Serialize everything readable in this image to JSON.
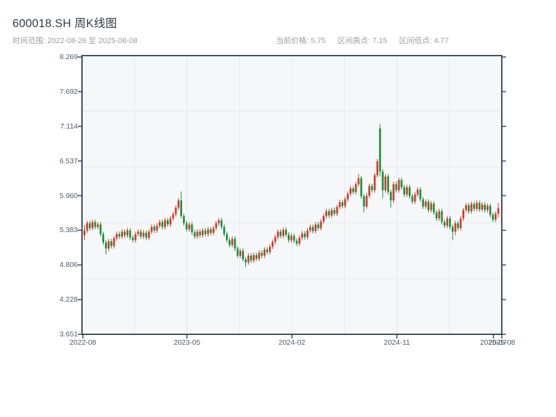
{
  "header": {
    "title": "600018.SH 周K线图",
    "subtitle": "时间范围: 2022-08-26 至 2025-08-08",
    "stats": [
      {
        "label": "当前价格:",
        "value": "5.75"
      },
      {
        "label": "区间高点:",
        "value": "7.15"
      },
      {
        "label": "区间低点:",
        "value": "4.77"
      }
    ]
  },
  "chart_data": {
    "type": "candlestick",
    "symbol": "600018.SH",
    "period": "weekly",
    "date_start": "2022-08-26",
    "date_end": "2025-08-08",
    "current_price": 5.75,
    "range_high": 7.15,
    "range_low": 4.77,
    "ylim": [
      3.651,
      8.269
    ],
    "y_tick_labels": [
      "8.269",
      "7.692",
      "7.114",
      "6.537",
      "5.960",
      "5.383",
      "4.806",
      "4.228",
      "3.651"
    ],
    "y_tick_values": [
      8.269,
      7.692,
      7.114,
      6.537,
      5.96,
      5.383,
      4.806,
      4.228,
      3.651
    ],
    "x_ticks": [
      {
        "label": "2022-08",
        "pos": 0.002
      },
      {
        "label": "2023-05",
        "pos": 0.25
      },
      {
        "label": "2024-02",
        "pos": 0.5
      },
      {
        "label": "2024-11",
        "pos": 0.75
      },
      {
        "label": "2025-07",
        "pos": 0.98
      },
      {
        "label": "2025-08",
        "pos": 1.0
      }
    ],
    "grid": {
      "h_divisions": 5,
      "v_divisions": 8,
      "visible": true
    },
    "legend": "none",
    "colors": {
      "up": "#d1372c",
      "down": "#169139",
      "spine": "#2b3c4e",
      "grid": "#e8eaed",
      "plot_bg": "#f6f7f9",
      "tick_label": "#4d5b69",
      "title": "#2f3b47",
      "subtitle": "#97a0a8"
    },
    "candles_format": "[open, high, low, close] per week",
    "candles": [
      [
        5.3,
        5.47,
        5.22,
        5.38
      ],
      [
        5.38,
        5.54,
        5.34,
        5.5
      ],
      [
        5.5,
        5.54,
        5.38,
        5.42
      ],
      [
        5.42,
        5.56,
        5.38,
        5.52
      ],
      [
        5.52,
        5.56,
        5.4,
        5.44
      ],
      [
        5.44,
        5.52,
        5.4,
        5.48
      ],
      [
        5.48,
        5.52,
        5.28,
        5.32
      ],
      [
        5.32,
        5.36,
        5.14,
        5.18
      ],
      [
        5.18,
        5.22,
        4.98,
        5.08
      ],
      [
        5.08,
        5.24,
        5.04,
        5.2
      ],
      [
        5.2,
        5.24,
        5.08,
        5.12
      ],
      [
        5.12,
        5.29,
        5.08,
        5.25
      ],
      [
        5.25,
        5.36,
        5.21,
        5.32
      ],
      [
        5.32,
        5.36,
        5.24,
        5.28
      ],
      [
        5.28,
        5.4,
        5.24,
        5.36
      ],
      [
        5.36,
        5.4,
        5.26,
        5.3
      ],
      [
        5.3,
        5.42,
        5.26,
        5.38
      ],
      [
        5.38,
        5.42,
        5.22,
        5.26
      ],
      [
        5.26,
        5.3,
        5.18,
        5.22
      ],
      [
        5.22,
        5.36,
        5.18,
        5.32
      ],
      [
        5.32,
        5.4,
        5.28,
        5.36
      ],
      [
        5.36,
        5.4,
        5.24,
        5.28
      ],
      [
        5.28,
        5.38,
        5.24,
        5.34
      ],
      [
        5.34,
        5.38,
        5.22,
        5.26
      ],
      [
        5.26,
        5.4,
        5.22,
        5.36
      ],
      [
        5.36,
        5.48,
        5.32,
        5.44
      ],
      [
        5.44,
        5.48,
        5.34,
        5.38
      ],
      [
        5.38,
        5.5,
        5.34,
        5.46
      ],
      [
        5.46,
        5.56,
        5.42,
        5.52
      ],
      [
        5.52,
        5.56,
        5.4,
        5.44
      ],
      [
        5.44,
        5.59,
        5.4,
        5.55
      ],
      [
        5.55,
        5.59,
        5.44,
        5.48
      ],
      [
        5.48,
        5.62,
        5.44,
        5.58
      ],
      [
        5.58,
        5.69,
        5.54,
        5.65
      ],
      [
        5.65,
        5.8,
        5.61,
        5.76
      ],
      [
        5.76,
        5.92,
        5.72,
        5.88
      ],
      [
        5.88,
        6.03,
        5.58,
        5.62
      ],
      [
        5.62,
        5.66,
        5.46,
        5.5
      ],
      [
        5.5,
        5.54,
        5.36,
        5.4
      ],
      [
        5.4,
        5.52,
        5.36,
        5.48
      ],
      [
        5.48,
        5.52,
        5.31,
        5.35
      ],
      [
        5.35,
        5.39,
        5.24,
        5.28
      ],
      [
        5.28,
        5.4,
        5.24,
        5.36
      ],
      [
        5.36,
        5.4,
        5.26,
        5.3
      ],
      [
        5.3,
        5.42,
        5.26,
        5.38
      ],
      [
        5.38,
        5.42,
        5.28,
        5.32
      ],
      [
        5.32,
        5.44,
        5.28,
        5.4
      ],
      [
        5.4,
        5.44,
        5.3,
        5.34
      ],
      [
        5.34,
        5.46,
        5.3,
        5.42
      ],
      [
        5.42,
        5.54,
        5.38,
        5.5
      ],
      [
        5.5,
        5.59,
        5.46,
        5.55
      ],
      [
        5.55,
        5.59,
        5.4,
        5.44
      ],
      [
        5.44,
        5.48,
        5.28,
        5.32
      ],
      [
        5.32,
        5.36,
        5.18,
        5.22
      ],
      [
        5.22,
        5.26,
        5.1,
        5.14
      ],
      [
        5.14,
        5.28,
        5.1,
        5.24
      ],
      [
        5.24,
        5.28,
        5.04,
        5.08
      ],
      [
        5.08,
        5.12,
        4.92,
        4.96
      ],
      [
        4.96,
        5.08,
        4.92,
        5.04
      ],
      [
        5.04,
        5.08,
        4.86,
        4.9
      ],
      [
        4.9,
        4.94,
        4.77,
        4.85
      ],
      [
        4.85,
        5.0,
        4.81,
        4.96
      ],
      [
        4.96,
        5.0,
        4.84,
        4.88
      ],
      [
        4.88,
        5.01,
        4.84,
        4.97
      ],
      [
        4.97,
        5.01,
        4.87,
        4.91
      ],
      [
        4.91,
        5.05,
        4.87,
        5.01
      ],
      [
        5.01,
        5.05,
        4.92,
        4.96
      ],
      [
        4.96,
        5.1,
        4.92,
        5.06
      ],
      [
        5.06,
        5.1,
        4.98,
        5.02
      ],
      [
        5.02,
        5.15,
        4.98,
        5.11
      ],
      [
        5.11,
        5.23,
        5.07,
        5.19
      ],
      [
        5.19,
        5.31,
        5.15,
        5.27
      ],
      [
        5.27,
        5.4,
        5.23,
        5.36
      ],
      [
        5.36,
        5.4,
        5.25,
        5.29
      ],
      [
        5.29,
        5.43,
        5.25,
        5.39
      ],
      [
        5.39,
        5.43,
        5.27,
        5.31
      ],
      [
        5.31,
        5.35,
        5.18,
        5.22
      ],
      [
        5.22,
        5.33,
        5.18,
        5.29
      ],
      [
        5.29,
        5.33,
        5.17,
        5.21
      ],
      [
        5.21,
        5.25,
        5.12,
        5.16
      ],
      [
        5.16,
        5.3,
        5.12,
        5.26
      ],
      [
        5.26,
        5.37,
        5.22,
        5.33
      ],
      [
        5.33,
        5.37,
        5.23,
        5.27
      ],
      [
        5.27,
        5.42,
        5.23,
        5.38
      ],
      [
        5.38,
        5.48,
        5.34,
        5.44
      ],
      [
        5.44,
        5.48,
        5.33,
        5.37
      ],
      [
        5.37,
        5.52,
        5.33,
        5.48
      ],
      [
        5.48,
        5.52,
        5.38,
        5.42
      ],
      [
        5.42,
        5.57,
        5.38,
        5.53
      ],
      [
        5.53,
        5.66,
        5.49,
        5.62
      ],
      [
        5.62,
        5.74,
        5.58,
        5.7
      ],
      [
        5.7,
        5.74,
        5.59,
        5.63
      ],
      [
        5.63,
        5.76,
        5.59,
        5.72
      ],
      [
        5.72,
        5.76,
        5.62,
        5.66
      ],
      [
        5.66,
        5.81,
        5.62,
        5.77
      ],
      [
        5.77,
        5.89,
        5.73,
        5.85
      ],
      [
        5.85,
        5.89,
        5.75,
        5.79
      ],
      [
        5.79,
        5.94,
        5.75,
        5.9
      ],
      [
        5.9,
        6.03,
        5.86,
        5.99
      ],
      [
        5.99,
        6.12,
        5.95,
        6.08
      ],
      [
        6.08,
        6.12,
        5.98,
        6.02
      ],
      [
        6.02,
        6.19,
        5.98,
        6.15
      ],
      [
        6.15,
        6.32,
        6.11,
        6.25
      ],
      [
        6.25,
        6.29,
        5.91,
        5.95
      ],
      [
        5.95,
        5.99,
        5.68,
        5.78
      ],
      [
        5.78,
        6.0,
        5.74,
        5.96
      ],
      [
        5.96,
        6.16,
        5.92,
        6.12
      ],
      [
        6.12,
        6.16,
        6.01,
        6.05
      ],
      [
        6.05,
        6.34,
        6.01,
        6.3
      ],
      [
        6.3,
        6.57,
        6.26,
        6.53
      ],
      [
        7.08,
        7.15,
        6.28,
        6.36
      ],
      [
        6.36,
        6.4,
        5.92,
        6.05
      ],
      [
        6.05,
        6.32,
        6.01,
        6.28
      ],
      [
        6.28,
        6.32,
        5.98,
        6.02
      ],
      [
        6.02,
        6.06,
        5.76,
        5.88
      ],
      [
        5.88,
        6.19,
        5.84,
        6.15
      ],
      [
        6.15,
        6.19,
        6.01,
        6.05
      ],
      [
        6.05,
        6.26,
        6.01,
        6.22
      ],
      [
        6.22,
        6.26,
        6.06,
        6.1
      ],
      [
        6.1,
        6.14,
        5.94,
        5.98
      ],
      [
        5.98,
        6.14,
        5.94,
        6.1
      ],
      [
        6.1,
        6.14,
        5.91,
        5.95
      ],
      [
        5.95,
        5.99,
        5.82,
        5.86
      ],
      [
        5.86,
        6.02,
        5.82,
        5.98
      ],
      [
        5.98,
        6.1,
        5.94,
        6.06
      ],
      [
        6.06,
        6.1,
        5.86,
        5.9
      ],
      [
        5.9,
        5.94,
        5.74,
        5.78
      ],
      [
        5.78,
        5.9,
        5.74,
        5.86
      ],
      [
        5.86,
        5.9,
        5.68,
        5.72
      ],
      [
        5.72,
        5.87,
        5.68,
        5.83
      ],
      [
        5.83,
        5.87,
        5.64,
        5.68
      ],
      [
        5.68,
        5.72,
        5.54,
        5.58
      ],
      [
        5.58,
        5.74,
        5.54,
        5.7
      ],
      [
        5.7,
        5.74,
        5.48,
        5.52
      ],
      [
        5.52,
        5.56,
        5.42,
        5.46
      ],
      [
        5.46,
        5.62,
        5.42,
        5.58
      ],
      [
        5.58,
        5.62,
        5.4,
        5.44
      ],
      [
        5.44,
        5.48,
        5.22,
        5.36
      ],
      [
        5.36,
        5.54,
        5.3,
        5.5
      ],
      [
        5.5,
        5.54,
        5.38,
        5.42
      ],
      [
        5.42,
        5.62,
        5.38,
        5.58
      ],
      [
        5.58,
        5.76,
        5.54,
        5.72
      ],
      [
        5.72,
        5.84,
        5.68,
        5.8
      ],
      [
        5.8,
        5.84,
        5.66,
        5.7
      ],
      [
        5.7,
        5.86,
        5.66,
        5.82
      ],
      [
        5.82,
        5.86,
        5.7,
        5.74
      ],
      [
        5.74,
        5.88,
        5.7,
        5.84
      ],
      [
        5.84,
        5.88,
        5.69,
        5.73
      ],
      [
        5.73,
        5.85,
        5.69,
        5.81
      ],
      [
        5.81,
        5.85,
        5.68,
        5.72
      ],
      [
        5.72,
        5.83,
        5.68,
        5.79
      ],
      [
        5.79,
        5.83,
        5.6,
        5.64
      ],
      [
        5.64,
        5.68,
        5.52,
        5.56
      ],
      [
        5.56,
        5.7,
        5.52,
        5.66
      ],
      [
        5.66,
        5.84,
        5.6,
        5.75
      ]
    ]
  }
}
